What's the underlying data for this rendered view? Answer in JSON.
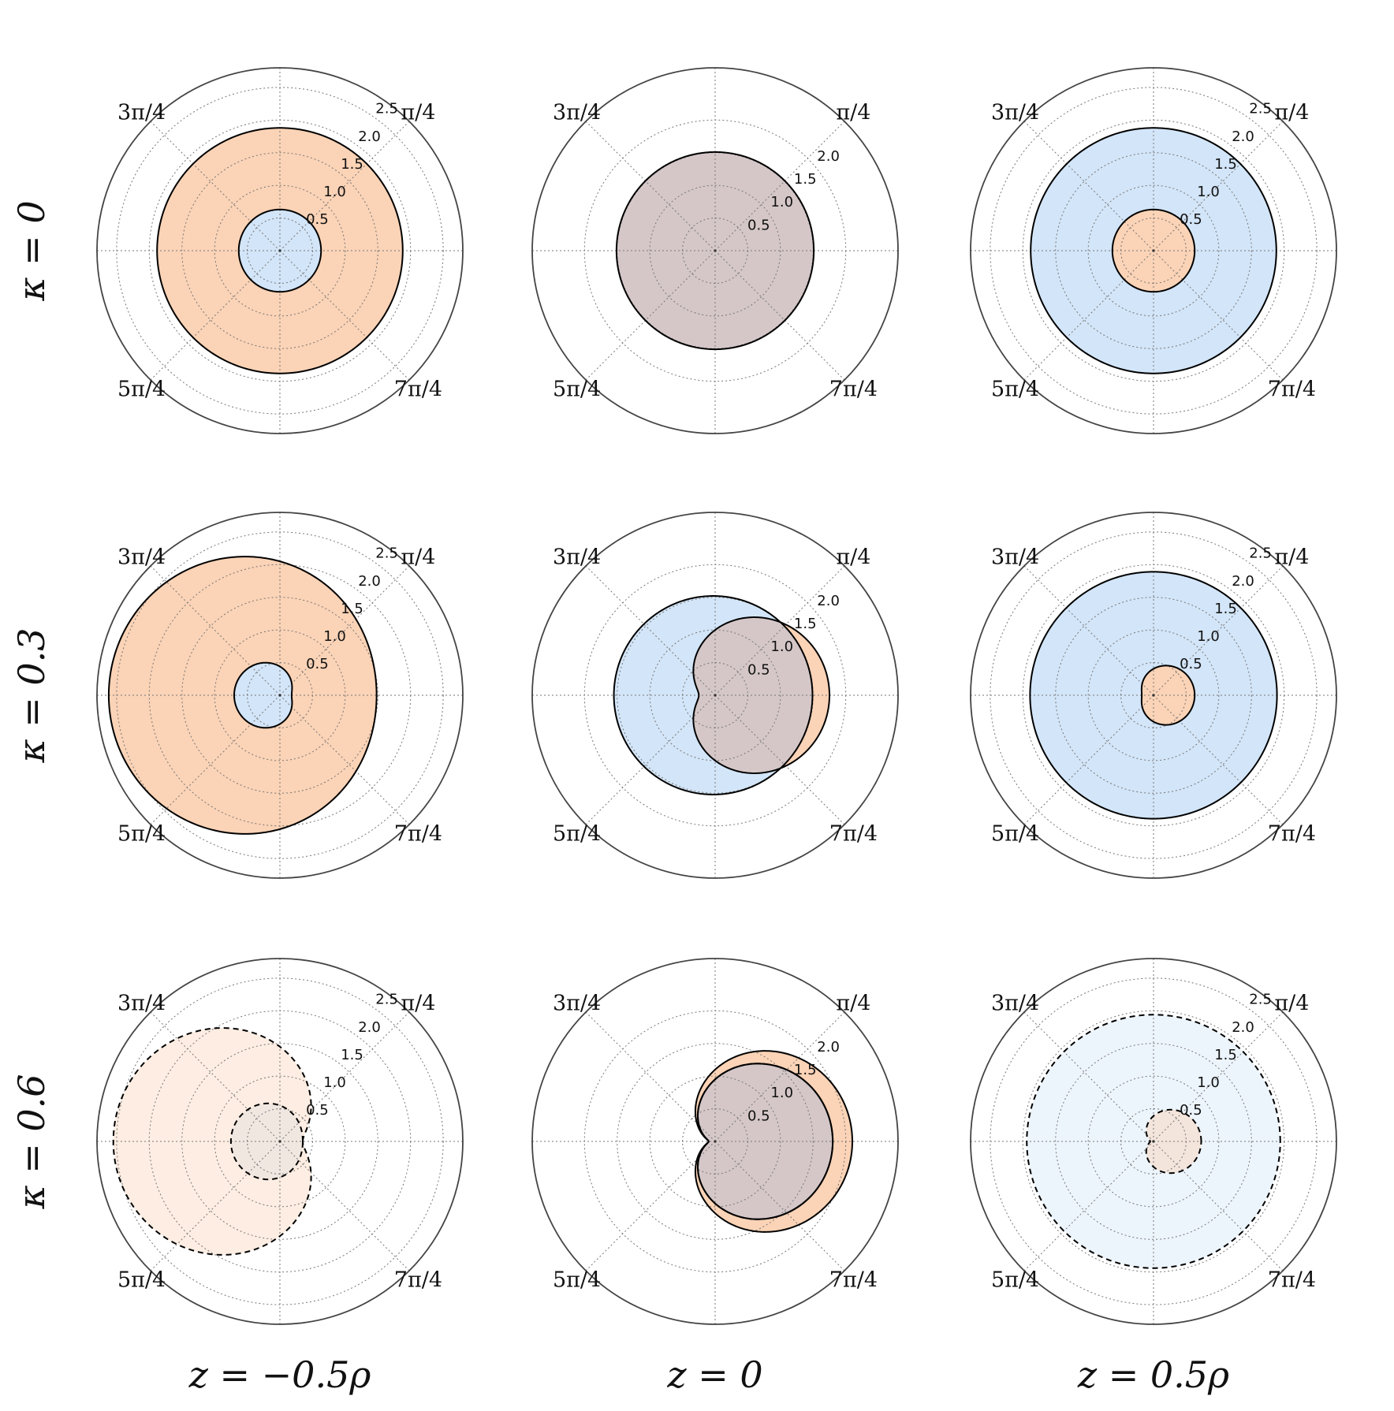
{
  "chart_data": {
    "type": "polar-area",
    "layout": "3x3 grid",
    "rows": [
      "κ = 0",
      "κ = 0.3",
      "κ = 0.6"
    ],
    "columns": [
      "z = −0.5ρ",
      "z = 0",
      "z = 0.5ρ"
    ],
    "angle_tick_labels": [
      "π/4",
      "3π/4",
      "5π/4",
      "7π/4"
    ],
    "radial_ticks": [
      "0.5",
      "1.0",
      "1.5",
      "2.0",
      "2.5"
    ],
    "rlim": [
      0,
      2.5
    ],
    "grid": true,
    "colors": {
      "orange": "#fbd3b6",
      "blue": "#d3e5f8",
      "overlap": "#d5c7c8",
      "outline": "#000000",
      "frame": "#444444"
    },
    "curve_model": "r(θ) = r0 + 0.5·a·(1 + cos θ) + b·(1 − cos θ)",
    "panels": [
      {
        "row": 0,
        "col": 0,
        "show_r25": true,
        "rtick_angle": 1.01,
        "rtick_offset": 0.07,
        "curves": [
          {
            "color": "orange",
            "r0": 1.88,
            "a": 0.0,
            "b": 0.0,
            "dashed": false,
            "alpha": 1.0
          },
          {
            "color": "blue",
            "r0": 0.63,
            "a": 0.0,
            "b": 0.0,
            "dashed": false,
            "alpha": 1.0
          }
        ]
      },
      {
        "row": 0,
        "col": 1,
        "show_r25": false,
        "rtick_angle": 0.78,
        "rtick_offset": 0.06,
        "curves": [
          {
            "color": "overlap",
            "r0": 1.51,
            "a": 0.0,
            "b": 0.0,
            "dashed": false,
            "alpha": 1.0
          }
        ]
      },
      {
        "row": 0,
        "col": 2,
        "show_r25": true,
        "rtick_angle": 1.01,
        "rtick_offset": 0.07,
        "curves": [
          {
            "color": "blue",
            "r0": 1.88,
            "a": 0.0,
            "b": 0.0,
            "dashed": false,
            "alpha": 1.0
          },
          {
            "color": "orange",
            "r0": 0.63,
            "a": 0.0,
            "b": 0.0,
            "dashed": false,
            "alpha": 1.0
          }
        ]
      },
      {
        "row": 1,
        "col": 0,
        "show_r25": true,
        "rtick_angle": 1.01,
        "rtick_offset": 0.07,
        "curves": [
          {
            "color": "orange",
            "r0": 1.48,
            "a": 0.0,
            "b": 0.57,
            "dashed": false,
            "alpha": 1.0
          },
          {
            "color": "blue",
            "r0": 0.18,
            "a": 0.0,
            "b": 0.26,
            "dashed": false,
            "alpha": 1.0
          }
        ]
      },
      {
        "row": 1,
        "col": 1,
        "show_r25": false,
        "rtick_angle": 0.78,
        "rtick_offset": 0.06,
        "curves": [
          {
            "color": "orange",
            "r0": 0.25,
            "a": 1.5,
            "b": 0.0,
            "dashed": false,
            "alpha": 1.0
          },
          {
            "color": "blue",
            "r0": 1.55,
            "a": -0.06,
            "b": 0.0,
            "dashed": false,
            "alpha": 1.0
          },
          {
            "color": "overlap",
            "r0": 0.25,
            "a": 1.5,
            "b": 0.0,
            "dashed": false,
            "alpha": 1.0,
            "clip_to_blue": true
          }
        ]
      },
      {
        "row": 1,
        "col": 2,
        "show_r25": true,
        "rtick_angle": 1.01,
        "rtick_offset": 0.07,
        "curves": [
          {
            "color": "blue",
            "r0": 1.89,
            "a": 0.0,
            "b": 0.0,
            "dashed": false,
            "alpha": 1.0
          },
          {
            "color": "orange",
            "r0": 0.18,
            "a": 0.45,
            "b": 0.0,
            "dashed": false,
            "alpha": 1.0
          }
        ]
      },
      {
        "row": 2,
        "col": 0,
        "show_r25": true,
        "rtick_angle": 1.01,
        "rtick_offset": 0.07,
        "curves": [
          {
            "color": "orange",
            "r0": 0.35,
            "a": 0.0,
            "b": 1.1,
            "dashed": true,
            "alpha": 0.4
          },
          {
            "color": "gray",
            "r0": 0.35,
            "a": 0.0,
            "b": 0.2,
            "dashed": true,
            "alpha": 0.5
          }
        ]
      },
      {
        "row": 2,
        "col": 1,
        "show_r25": false,
        "rtick_angle": 0.78,
        "rtick_offset": 0.06,
        "curves": [
          {
            "color": "orange",
            "r0": 0.1,
            "a": 2.0,
            "b": 0.0,
            "dashed": false,
            "alpha": 1.0
          },
          {
            "color": "blue",
            "r0": 0.1,
            "a": 1.7,
            "b": 0.0,
            "dashed": false,
            "alpha": 1.0
          },
          {
            "color": "overlap",
            "r0": 0.1,
            "a": 1.7,
            "b": 0.0,
            "dashed": false,
            "alpha": 1.0
          }
        ]
      },
      {
        "row": 2,
        "col": 2,
        "show_r25": true,
        "rtick_angle": 1.01,
        "rtick_offset": 0.07,
        "curves": [
          {
            "color": "blue",
            "r0": 1.94,
            "a": 0.0,
            "b": 0.0,
            "dashed": true,
            "alpha": 0.4
          },
          {
            "color": "orange",
            "r0": 0.05,
            "a": 0.68,
            "b": 0.0,
            "dashed": true,
            "alpha": 0.45
          }
        ]
      }
    ]
  }
}
